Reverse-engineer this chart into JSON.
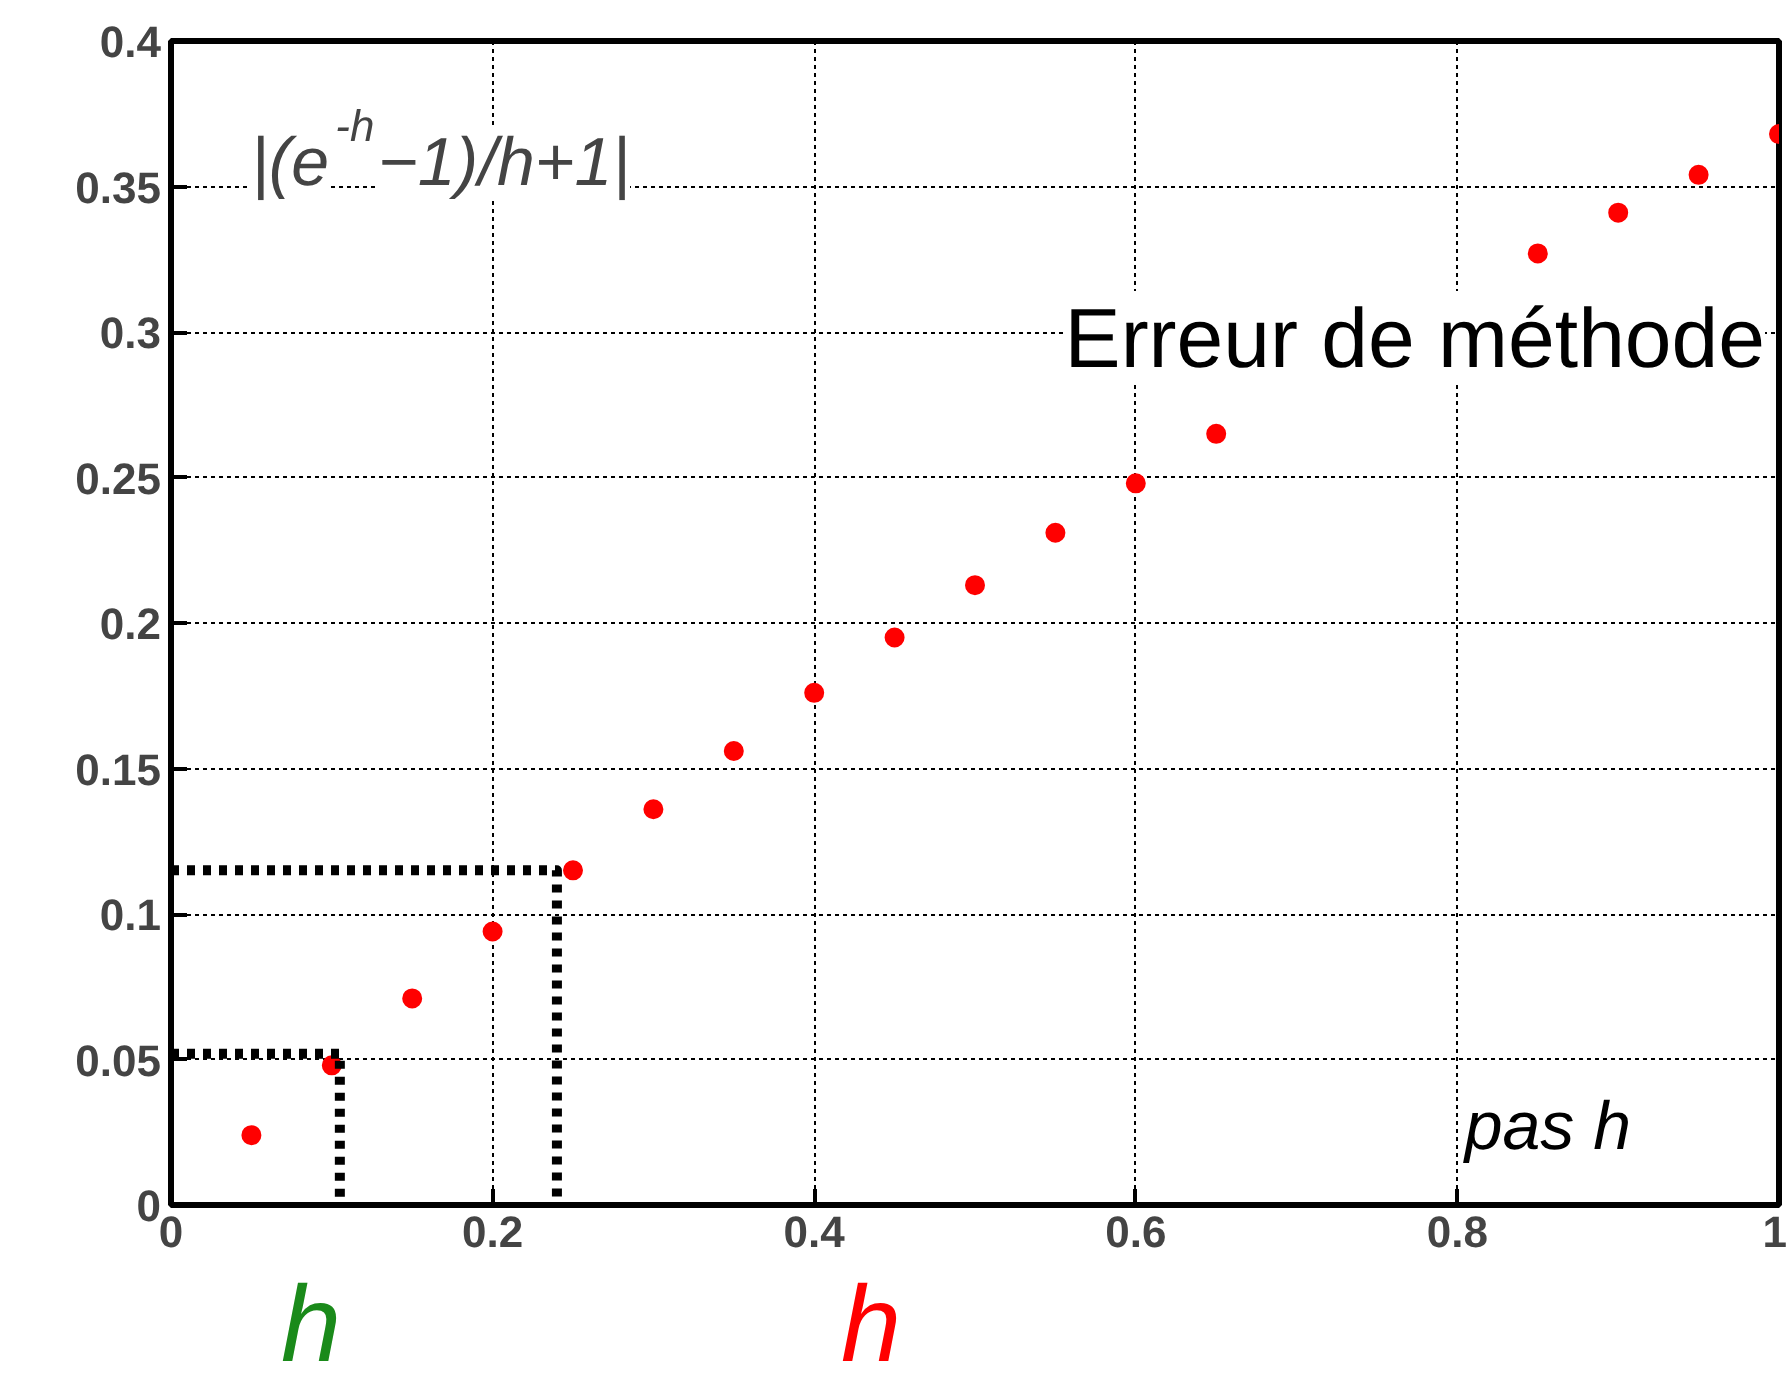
{
  "chart_data": {
    "type": "scatter",
    "x": [
      0.05,
      0.1,
      0.15,
      0.2,
      0.25,
      0.3,
      0.35,
      0.4,
      0.45,
      0.5,
      0.55,
      0.6,
      0.65,
      0.7,
      0.75,
      0.8,
      0.85,
      0.9,
      0.95,
      1.0
    ],
    "series": [
      {
        "color": "#ff0000",
        "marker": "circle",
        "values": [
          0.024,
          0.048,
          0.071,
          0.094,
          0.115,
          0.136,
          0.156,
          0.176,
          0.195,
          0.213,
          0.231,
          0.248,
          0.265,
          null,
          null,
          null,
          0.327,
          0.341,
          0.354,
          0.368
        ]
      },
      {
        "type": "line",
        "color": "#000000",
        "line_style": "dotted",
        "x": [
          0,
          0.105,
          0.105
        ],
        "values": [
          0.052,
          0.052,
          0
        ]
      },
      {
        "type": "line",
        "color": "#000000",
        "line_style": "dotted",
        "x": [
          0,
          0.24,
          0.24
        ],
        "values": [
          0.115,
          0.115,
          0
        ]
      }
    ],
    "xlim": [
      0,
      1
    ],
    "ylim": [
      0,
      0.4
    ],
    "xticks": [
      0,
      0.2,
      0.4,
      0.6,
      0.8,
      1
    ],
    "yticks": [
      0,
      0.05,
      0.1,
      0.15,
      0.2,
      0.25,
      0.3,
      0.35,
      0.4
    ],
    "grid": true,
    "annotations": [
      "|(e$^{-h}$−1)/h+1|",
      "Erreur de méthode",
      "pas h",
      "h",
      "h"
    ]
  }
}
